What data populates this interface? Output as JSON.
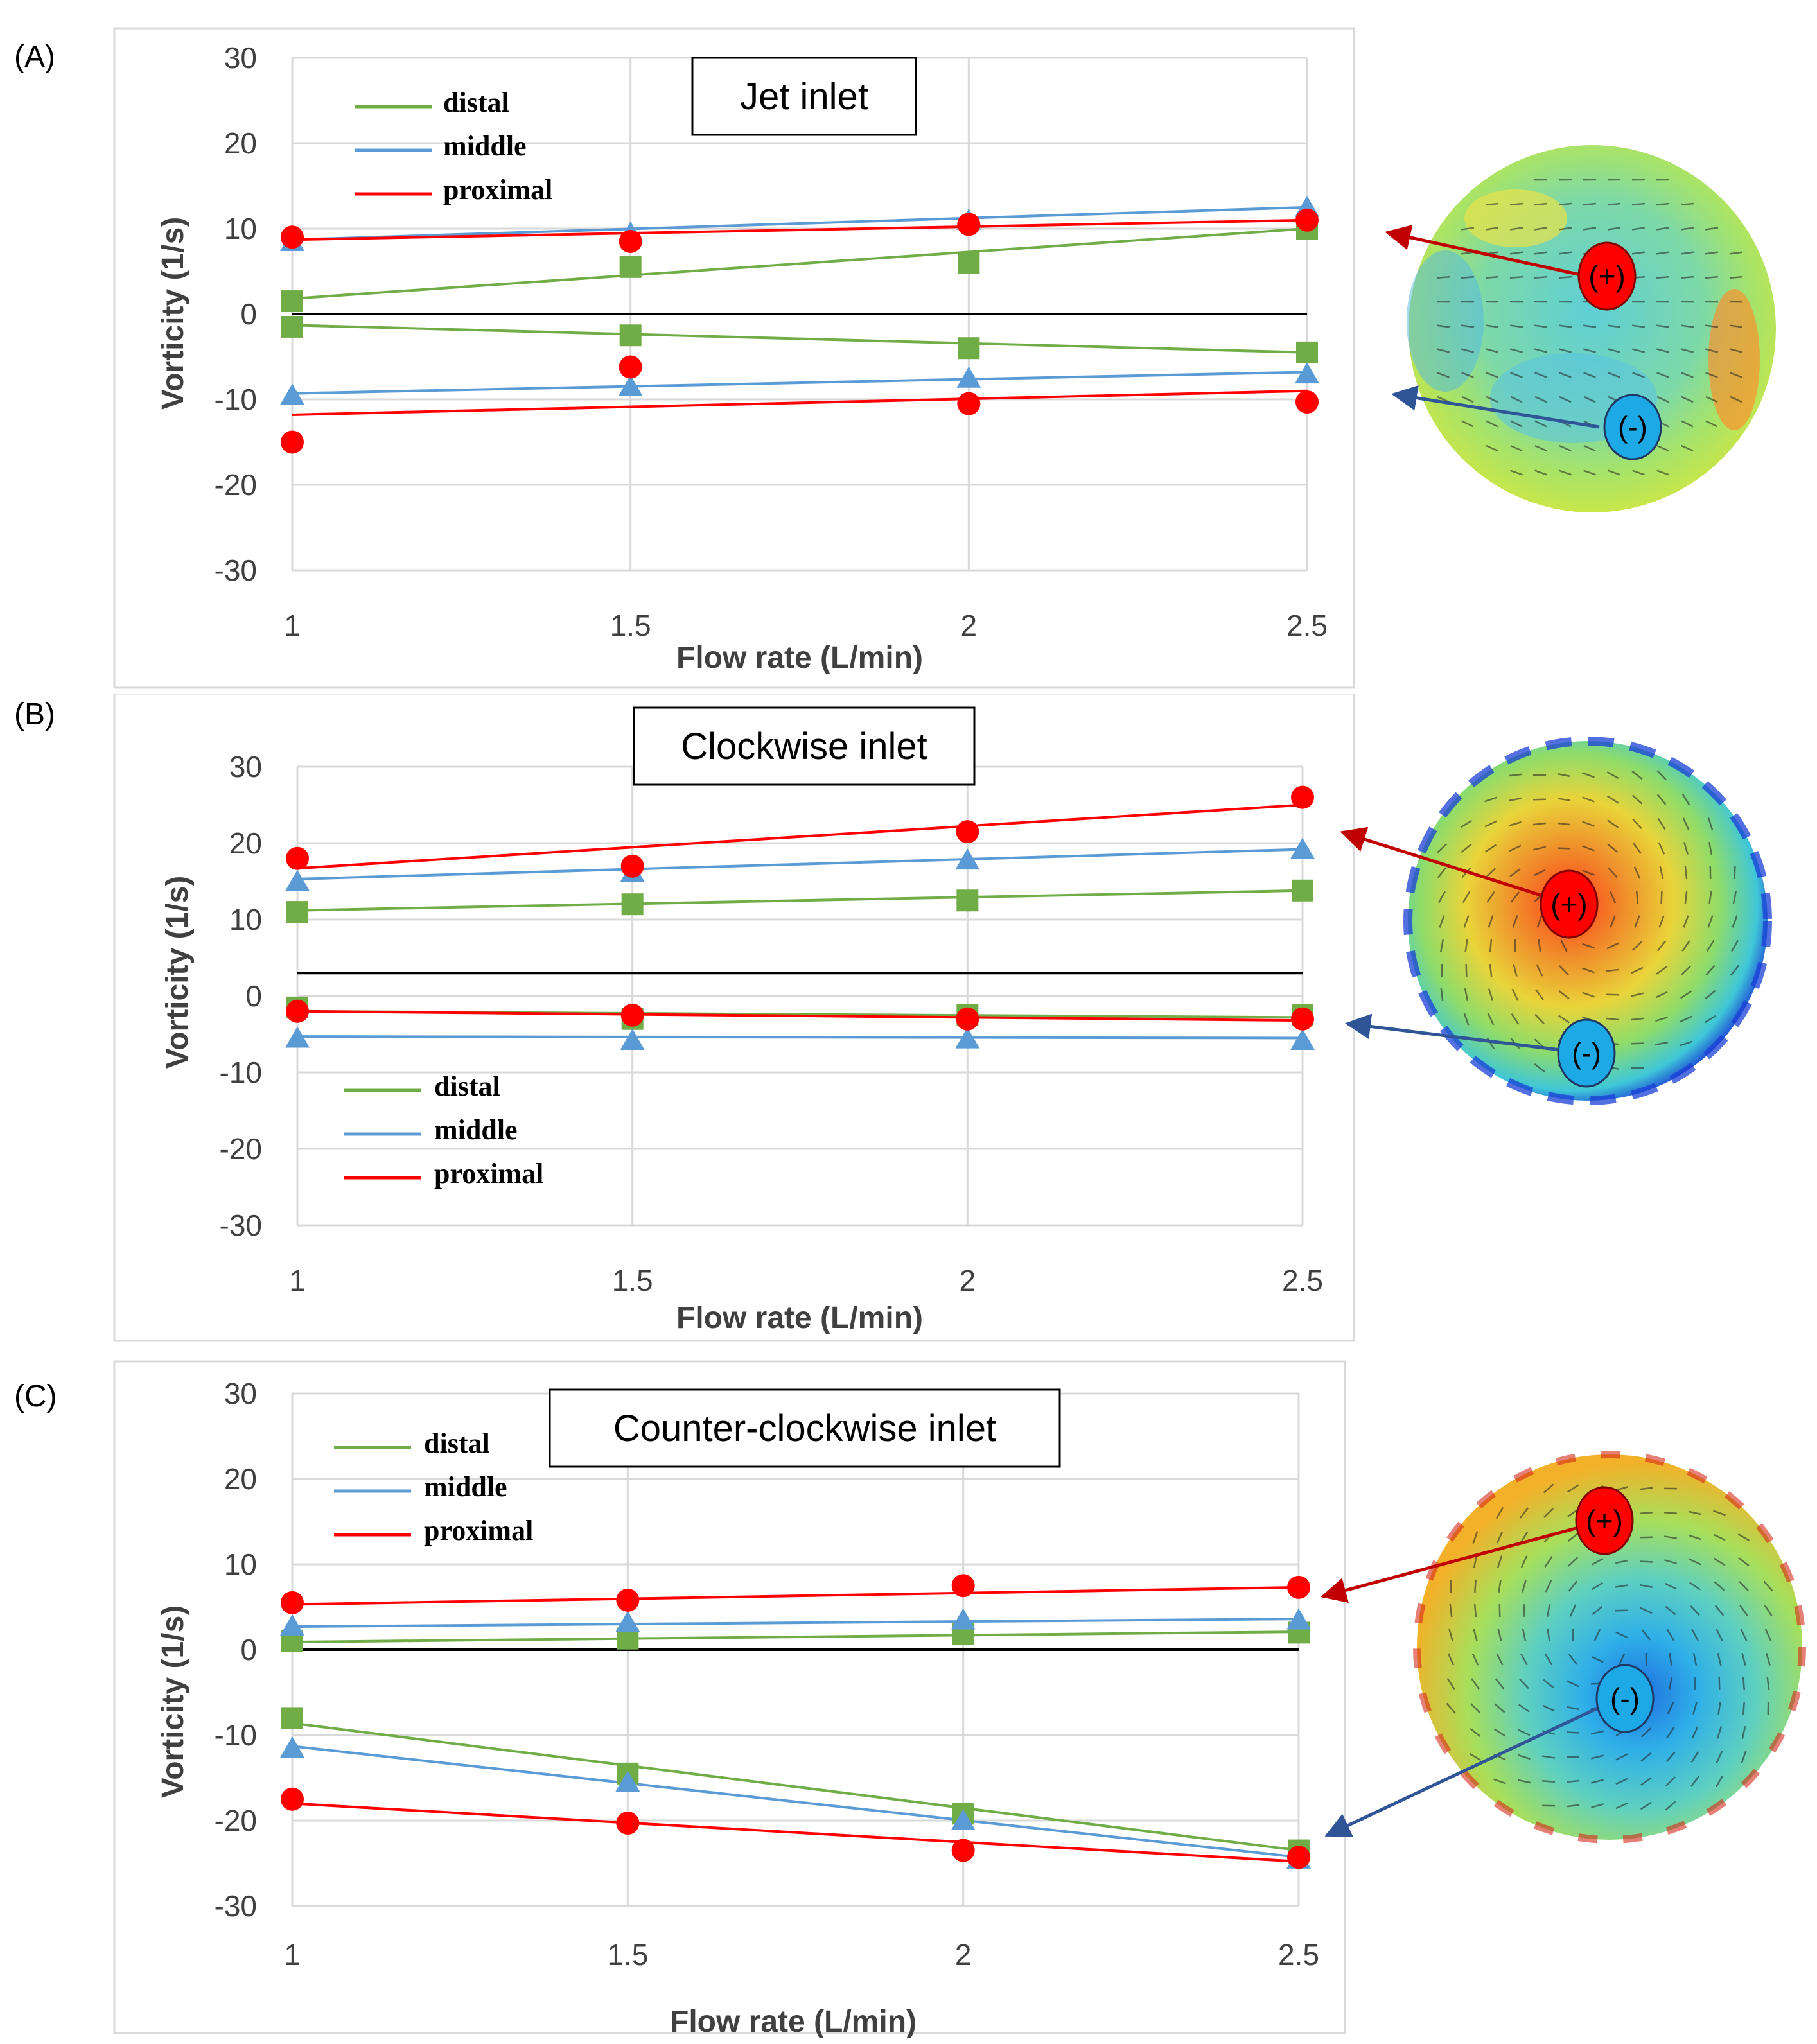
{
  "colors": {
    "distal": "#70ad47",
    "middle": "#5b9bd5",
    "proximal": "#ff0000",
    "axis": "#d9d9d9",
    "grid": "#d9d9d9",
    "zero": "#000000"
  },
  "chart_data": [
    {
      "panel_label": "(A)",
      "type": "scatter",
      "title": "Jet inlet",
      "xlabel": "Flow rate (L/min)",
      "ylabel": "Vorticity (1/s)",
      "x_ticks": [
        "1",
        "1.5",
        "2",
        "2.5"
      ],
      "y_ticks": [
        "30",
        "20",
        "10",
        "0",
        "-10",
        "-20",
        "-30"
      ],
      "x": [
        1,
        1.5,
        2,
        2.5
      ],
      "xlim": [
        1,
        2.5
      ],
      "ylim": [
        -30,
        30
      ],
      "zero_line": 0,
      "legend": [
        "distal",
        "middle",
        "proximal"
      ],
      "positive_marker": "(+)",
      "negative_marker": "(-)",
      "series": [
        {
          "name": "distal",
          "sign": "positive",
          "marker": "square",
          "values": [
            1.5,
            5.5,
            6.0,
            10.0
          ],
          "trend": [
            1.8,
            10.0
          ]
        },
        {
          "name": "distal",
          "sign": "negative",
          "marker": "square",
          "values": [
            -1.5,
            -2.5,
            -4.0,
            -4.5
          ],
          "trend": [
            -1.3,
            -4.5
          ]
        },
        {
          "name": "middle",
          "sign": "positive",
          "marker": "triangle",
          "values": [
            8.5,
            9.5,
            11.0,
            12.5
          ],
          "trend": [
            8.7,
            12.5
          ]
        },
        {
          "name": "middle",
          "sign": "negative",
          "marker": "triangle",
          "values": [
            -9.5,
            -8.5,
            -7.5,
            -7.0
          ],
          "trend": [
            -9.3,
            -6.8
          ]
        },
        {
          "name": "proximal",
          "sign": "positive",
          "marker": "circle",
          "values": [
            9.0,
            8.5,
            10.5,
            11.0
          ],
          "trend": [
            8.7,
            11.0
          ]
        },
        {
          "name": "proximal",
          "sign": "negative",
          "marker": "circle",
          "values": [
            -15.0,
            -6.2,
            -10.5,
            -10.3
          ],
          "trend": [
            -11.8,
            -9.0
          ]
        }
      ]
    },
    {
      "panel_label": "(B)",
      "type": "scatter",
      "title": "Clockwise inlet",
      "xlabel": "Flow rate (L/min)",
      "ylabel": "Vorticity (1/s)",
      "x_ticks": [
        "1",
        "1.5",
        "2",
        "2.5"
      ],
      "y_ticks": [
        "30",
        "20",
        "10",
        "0",
        "-10",
        "-20",
        "-30"
      ],
      "x": [
        1,
        1.5,
        2,
        2.5
      ],
      "xlim": [
        1,
        2.5
      ],
      "ylim": [
        -30,
        30
      ],
      "zero_line": 3,
      "legend": [
        "distal",
        "middle",
        "proximal"
      ],
      "positive_marker": "(+)",
      "negative_marker": "(-)",
      "series": [
        {
          "name": "distal",
          "sign": "positive",
          "marker": "square",
          "values": [
            11.0,
            12.0,
            12.5,
            13.8
          ],
          "trend": [
            11.2,
            13.8
          ]
        },
        {
          "name": "distal",
          "sign": "negative",
          "marker": "square",
          "values": [
            -1.5,
            -3.0,
            -2.5,
            -2.5
          ],
          "trend": [
            -2.0,
            -2.8
          ]
        },
        {
          "name": "middle",
          "sign": "positive",
          "marker": "triangle",
          "values": [
            15.0,
            16.2,
            17.8,
            19.2
          ],
          "trend": [
            15.3,
            19.2
          ]
        },
        {
          "name": "middle",
          "sign": "negative",
          "marker": "triangle",
          "values": [
            -5.5,
            -5.8,
            -5.6,
            -5.8
          ],
          "trend": [
            -5.3,
            -5.5
          ]
        },
        {
          "name": "proximal",
          "sign": "positive",
          "marker": "circle",
          "values": [
            18.0,
            17.0,
            21.5,
            26.0
          ],
          "trend": [
            16.7,
            25.0
          ]
        },
        {
          "name": "proximal",
          "sign": "negative",
          "marker": "circle",
          "values": [
            -2.0,
            -2.5,
            -3.0,
            -3.0
          ],
          "trend": [
            -2.0,
            -3.2
          ]
        }
      ]
    },
    {
      "panel_label": "(C)",
      "type": "scatter",
      "title": "Counter-clockwise inlet",
      "xlabel": "Flow rate (L/min)",
      "ylabel": "Vorticity (1/s)",
      "x_ticks": [
        "1",
        "1.5",
        "2",
        "2.5"
      ],
      "y_ticks": [
        "30",
        "20",
        "10",
        "0",
        "-10",
        "-20",
        "-30"
      ],
      "x": [
        1,
        1.5,
        2,
        2.5
      ],
      "xlim": [
        1,
        2.5
      ],
      "ylim": [
        -30,
        30
      ],
      "zero_line": 0,
      "legend": [
        "distal",
        "middle",
        "proximal"
      ],
      "positive_marker": "(+)",
      "negative_marker": "(-)",
      "series": [
        {
          "name": "distal",
          "sign": "positive",
          "marker": "square",
          "values": [
            1.0,
            1.3,
            1.8,
            2.0
          ],
          "trend": [
            0.9,
            2.1
          ]
        },
        {
          "name": "distal",
          "sign": "negative",
          "marker": "square",
          "values": [
            -8.0,
            -14.5,
            -19.2,
            -23.5
          ],
          "trend": [
            -8.6,
            -23.5
          ]
        },
        {
          "name": "middle",
          "sign": "positive",
          "marker": "triangle",
          "values": [
            2.8,
            3.2,
            3.5,
            3.5
          ],
          "trend": [
            2.7,
            3.6
          ]
        },
        {
          "name": "middle",
          "sign": "negative",
          "marker": "triangle",
          "values": [
            -11.5,
            -15.5,
            -20.0,
            -24.5
          ],
          "trend": [
            -11.3,
            -24.3
          ]
        },
        {
          "name": "proximal",
          "sign": "positive",
          "marker": "circle",
          "values": [
            5.5,
            5.8,
            7.5,
            7.3
          ],
          "trend": [
            5.3,
            7.3
          ]
        },
        {
          "name": "proximal",
          "sign": "negative",
          "marker": "circle",
          "values": [
            -17.5,
            -20.3,
            -23.5,
            -24.3
          ],
          "trend": [
            -18.0,
            -24.8
          ]
        }
      ]
    }
  ]
}
